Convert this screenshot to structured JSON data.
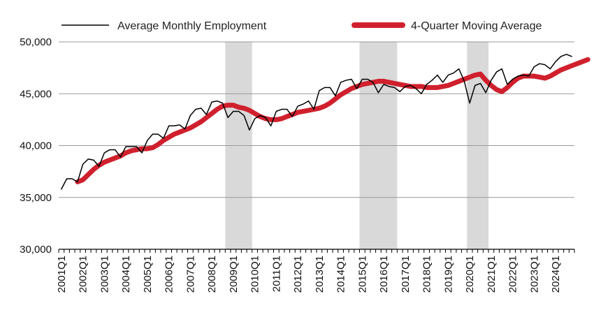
{
  "chart_data": {
    "type": "line",
    "title": "",
    "xlabel": "",
    "ylabel": "",
    "ylim": [
      30000,
      50000
    ],
    "yticks": [
      30000,
      35000,
      40000,
      45000,
      50000
    ],
    "ytick_labels": [
      "30,000",
      "35,000",
      "40,000",
      "45,000",
      "50,000"
    ],
    "grid": "horizontal",
    "legend": "top",
    "x_tick_labels": [
      "2001Q1",
      "2002Q1",
      "2003Q1",
      "2004Q1",
      "2005Q1",
      "2006Q1",
      "2007Q1",
      "2008Q1",
      "2009Q1",
      "2010Q1",
      "2011Q1",
      "2012Q1",
      "2013Q1",
      "2014Q1",
      "2015Q1",
      "2016Q1",
      "2017Q1",
      "2018Q1",
      "2019Q1",
      "2020Q1",
      "2021Q1",
      "2022Q1",
      "2023Q1",
      "2024Q1"
    ],
    "shaded_periods": [
      {
        "start": "2008Q4",
        "end": "2009Q4"
      },
      {
        "start": "2015Q1",
        "end": "2016Q3"
      },
      {
        "start": "2020Q1",
        "end": "2020Q4"
      }
    ],
    "series": [
      {
        "name": "Average Monthly Employment",
        "color": "#000000",
        "start": "2001Q1",
        "values": [
          35800,
          36800,
          36800,
          36500,
          38200,
          38700,
          38600,
          38000,
          39300,
          39600,
          39600,
          38900,
          39900,
          39900,
          39900,
          39300,
          40500,
          41100,
          41100,
          40700,
          41900,
          41900,
          42000,
          41600,
          42900,
          43500,
          43600,
          43000,
          44200,
          44300,
          44100,
          42700,
          43300,
          43300,
          42900,
          41500,
          42600,
          42900,
          42700,
          41900,
          43300,
          43500,
          43500,
          42800,
          43800,
          44000,
          44300,
          43500,
          45300,
          45600,
          45600,
          44800,
          46100,
          46300,
          46400,
          45500,
          46400,
          46400,
          46100,
          45100,
          45900,
          45700,
          45600,
          45200,
          45700,
          45800,
          45500,
          45000,
          45900,
          46300,
          46800,
          46100,
          46800,
          47000,
          47400,
          46200,
          44100,
          45800,
          46000,
          45100,
          46300,
          47100,
          47400,
          45900,
          46400,
          46700,
          46800,
          46700,
          47600,
          47900,
          47800,
          47400,
          48100,
          48600,
          48800,
          48600
        ]
      },
      {
        "name": "4-Quarter Moving Average",
        "color": "#d0202d",
        "start": "2001Q4",
        "values": [
          36500,
          36700,
          37200,
          37700,
          38100,
          38400,
          38600,
          38800,
          39000,
          39300,
          39500,
          39600,
          39700,
          39700,
          39800,
          40100,
          40500,
          40800,
          41100,
          41300,
          41500,
          41700,
          42000,
          42300,
          42700,
          43100,
          43500,
          43800,
          43900,
          43900,
          43700,
          43600,
          43400,
          43100,
          42800,
          42600,
          42500,
          42500,
          42600,
          42800,
          43000,
          43200,
          43300,
          43400,
          43500,
          43600,
          43800,
          44100,
          44500,
          44900,
          45200,
          45500,
          45700,
          45900,
          46000,
          46100,
          46200,
          46200,
          46100,
          46000,
          45900,
          45800,
          45700,
          45700,
          45700,
          45600,
          45600,
          45600,
          45700,
          45800,
          46000,
          46200,
          46400,
          46600,
          46800,
          46900,
          46300,
          45800,
          45400,
          45200,
          45600,
          46100,
          46500,
          46700,
          46700,
          46700,
          46600,
          46500,
          46700,
          47000,
          47300,
          47500,
          47700,
          47900,
          48100,
          48300
        ]
      }
    ]
  }
}
